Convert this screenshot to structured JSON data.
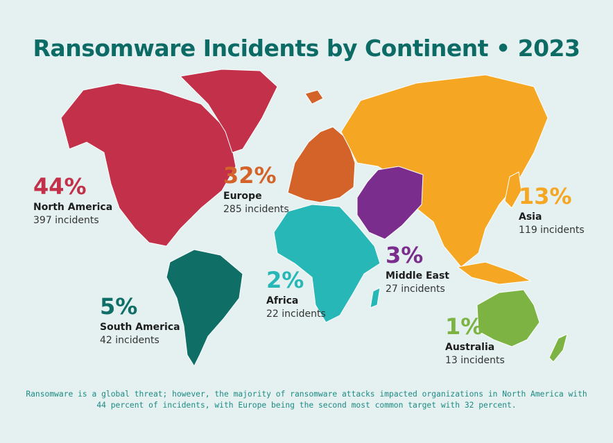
{
  "title": "Ransomware Incidents by Continent • 2023",
  "regions": [
    {
      "name": "North America",
      "percent": "44%",
      "incidents": "397 incidents",
      "color": "#c3304a"
    },
    {
      "name": "Europe",
      "percent": "32%",
      "incidents": "285 incidents",
      "color": "#d4632a"
    },
    {
      "name": "Asia",
      "percent": "13%",
      "incidents": "119 incidents",
      "color": "#f5a623"
    },
    {
      "name": "South America",
      "percent": "5%",
      "incidents": "42 incidents",
      "color": "#0f6f66"
    },
    {
      "name": "Middle East",
      "percent": "3%",
      "incidents": "27 incidents",
      "color": "#7b2d8e"
    },
    {
      "name": "Africa",
      "percent": "2%",
      "incidents": "22 incidents",
      "color": "#27b7b7"
    },
    {
      "name": "Australia",
      "percent": "1%",
      "incidents": "13 incidents",
      "color": "#7cb342"
    }
  ],
  "footnote": "Ransomware is a global threat; however, the majority of ransomware attacks impacted organizations in North America with 44 percent of incidents, with Europe being the second most common target with 32 percent."
}
